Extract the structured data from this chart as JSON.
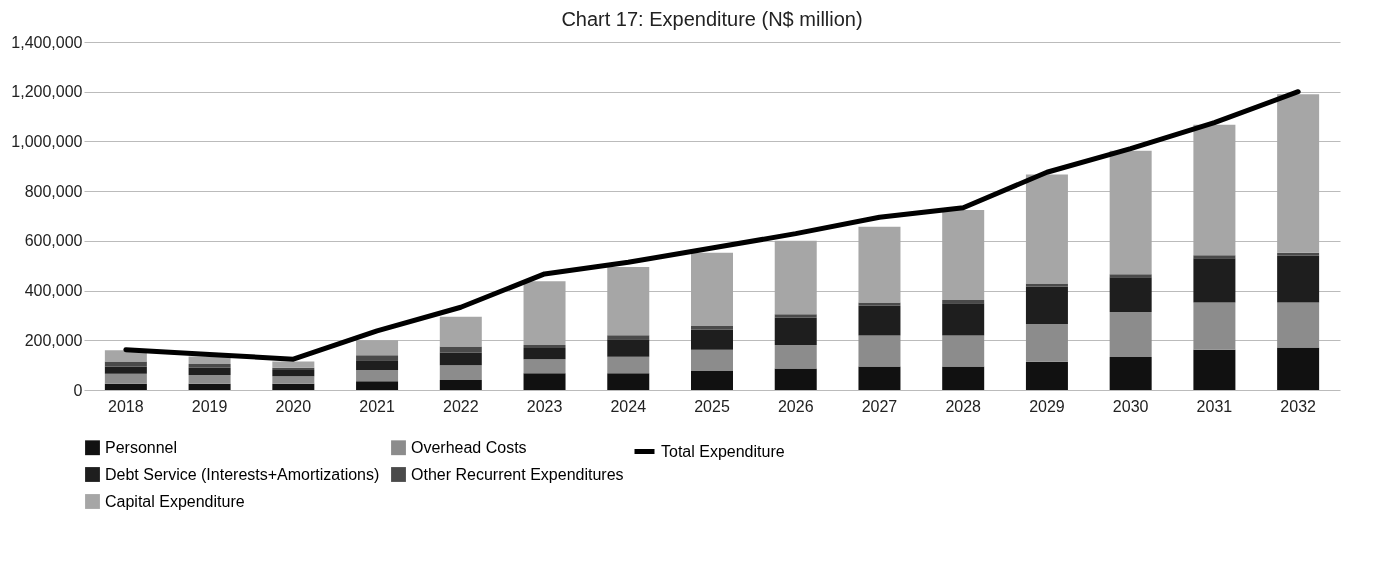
{
  "chart_data": {
    "type": "bar",
    "title": "Chart 17: Expenditure (N$ million)",
    "stacked": true,
    "grid": "y",
    "legend": "bottom",
    "categories": [
      "2018",
      "2019",
      "2020",
      "2021",
      "2022",
      "2023",
      "2024",
      "2025",
      "2026",
      "2027",
      "2028",
      "2029",
      "2030",
      "2031",
      "2032"
    ],
    "ylim": [
      0,
      1400000
    ],
    "yticks": [
      0,
      {
        "value": 200000,
        "label": "200,000"
      },
      {
        "value": 400000,
        "label": "400,000"
      },
      {
        "value": 600000,
        "label": "600,000"
      },
      {
        "value": 800000,
        "label": "800,000"
      },
      {
        "value": 1000000,
        "label": "1,000,000"
      },
      {
        "value": 1200000,
        "label": "1,200,000"
      },
      {
        "value": 1400000,
        "label": "1,400,000"
      }
    ],
    "series": [
      {
        "name": "Personnel",
        "color": "#111111",
        "values": [
          25000,
          25000,
          25000,
          35000,
          40000,
          67000,
          67000,
          76000,
          86000,
          95000,
          95000,
          114000,
          133000,
          162000,
          171000
        ]
      },
      {
        "name": "Overhead Costs",
        "color": "#8c8c8c",
        "values": [
          40000,
          35000,
          30000,
          45000,
          60000,
          57000,
          67000,
          86000,
          95000,
          124000,
          124000,
          152000,
          181000,
          190000,
          181000
        ]
      },
      {
        "name": "Debt Service (Interests+Amortizations)",
        "color": "#1e1e1e",
        "values": [
          30000,
          30000,
          25000,
          40000,
          50000,
          45000,
          70000,
          80000,
          110000,
          120000,
          130000,
          150000,
          140000,
          178000,
          188000
        ]
      },
      {
        "name": "Other Recurrent Expenditures",
        "color": "#4a4a4a",
        "values": [
          20000,
          15000,
          10000,
          20000,
          25000,
          12000,
          16000,
          15000,
          14000,
          13000,
          13000,
          12000,
          12000,
          12000,
          12000
        ]
      },
      {
        "name": "Capital Expenditure",
        "color": "#a6a6a6",
        "values": [
          45000,
          30000,
          25000,
          60000,
          120000,
          257000,
          275000,
          295000,
          295000,
          305000,
          362000,
          439000,
          496000,
          525000,
          638000
        ]
      },
      {
        "name": "Total Expenditure",
        "type": "line",
        "color": "#000000",
        "values": [
          162000,
          143000,
          124000,
          238000,
          333000,
          467000,
          514000,
          571000,
          629000,
          695000,
          733000,
          876000,
          971000,
          1076000,
          1200000
        ]
      }
    ]
  }
}
